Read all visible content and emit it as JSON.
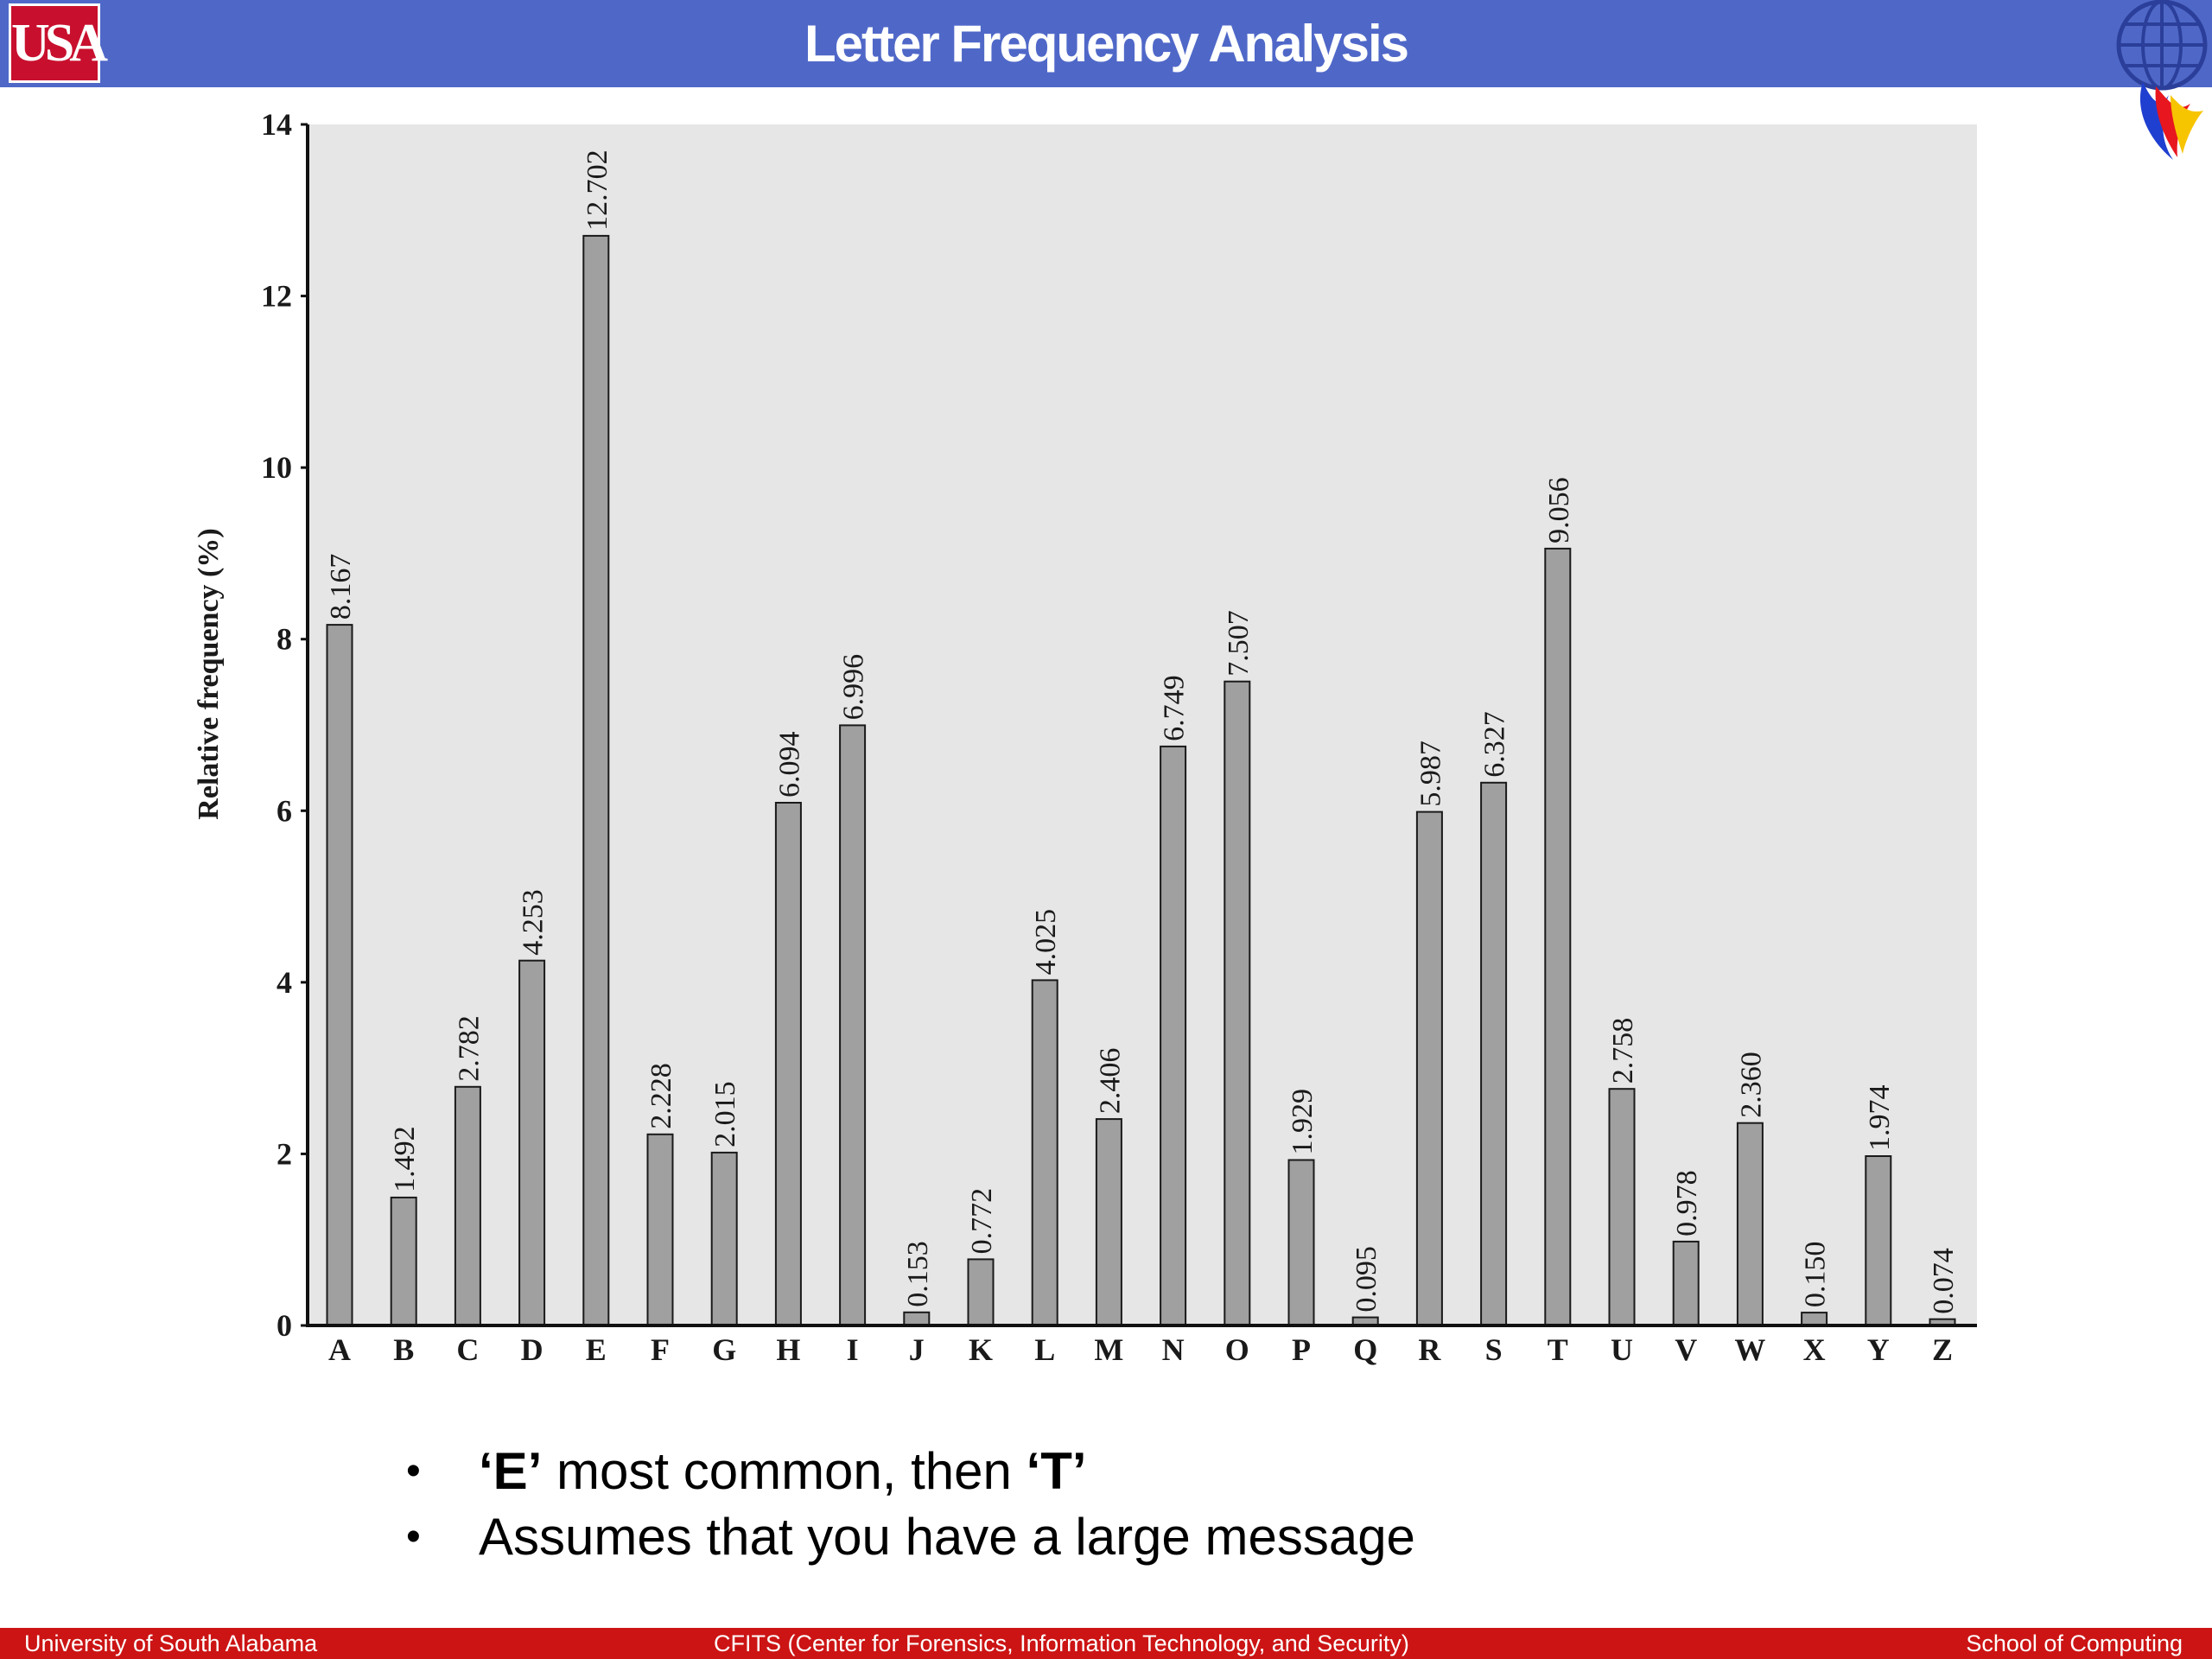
{
  "header": {
    "title": "Letter Frequency Analysis",
    "logo_left": "USA",
    "logo_right_icon": "globe-flame-icon"
  },
  "chart_data": {
    "type": "bar",
    "categories": [
      "A",
      "B",
      "C",
      "D",
      "E",
      "F",
      "G",
      "H",
      "I",
      "J",
      "K",
      "L",
      "M",
      "N",
      "O",
      "P",
      "Q",
      "R",
      "S",
      "T",
      "U",
      "V",
      "W",
      "X",
      "Y",
      "Z"
    ],
    "values": [
      8.167,
      1.492,
      2.782,
      4.253,
      12.702,
      2.228,
      2.015,
      6.094,
      6.996,
      0.153,
      0.772,
      4.025,
      2.406,
      6.749,
      7.507,
      1.929,
      0.095,
      5.987,
      6.327,
      9.056,
      2.758,
      0.978,
      2.36,
      0.15,
      1.974,
      0.074
    ],
    "value_labels": [
      "8.167",
      "1.492",
      "2.782",
      "4.253",
      "12.702",
      "2.228",
      "2.015",
      "6.094",
      "6.996",
      "0.153",
      "0.772",
      "4.025",
      "2.406",
      "6.749",
      "7.507",
      "1.929",
      "0.095",
      "5.987",
      "6.327",
      "9.056",
      "2.758",
      "0.978",
      "2.360",
      "0.150",
      "1.974",
      "0.074"
    ],
    "ylabel": "Relative frequency (%)",
    "ylim": [
      0,
      14
    ],
    "yticks": [
      0,
      2,
      4,
      6,
      8,
      10,
      12,
      14
    ],
    "ytick_labels": [
      "0",
      "2",
      "4",
      "6",
      "8",
      "10",
      "12",
      "14"
    ],
    "grid": false,
    "colors": {
      "bar": "#a0a0a0",
      "background": "#e6e6e6"
    }
  },
  "bullets": [
    {
      "bold_a": "‘E’",
      "text_a": " most common, then ",
      "bold_b": "‘T’"
    },
    {
      "text": "Assumes that you have a large message"
    }
  ],
  "footer": {
    "left": "University of South Alabama",
    "center": "CFITS (Center for Forensics,  Information Technology, and Security)",
    "right": "School of Computing"
  },
  "colors": {
    "header": "#4f68c8",
    "footer": "#cc1414",
    "logo": "#c8102e"
  }
}
